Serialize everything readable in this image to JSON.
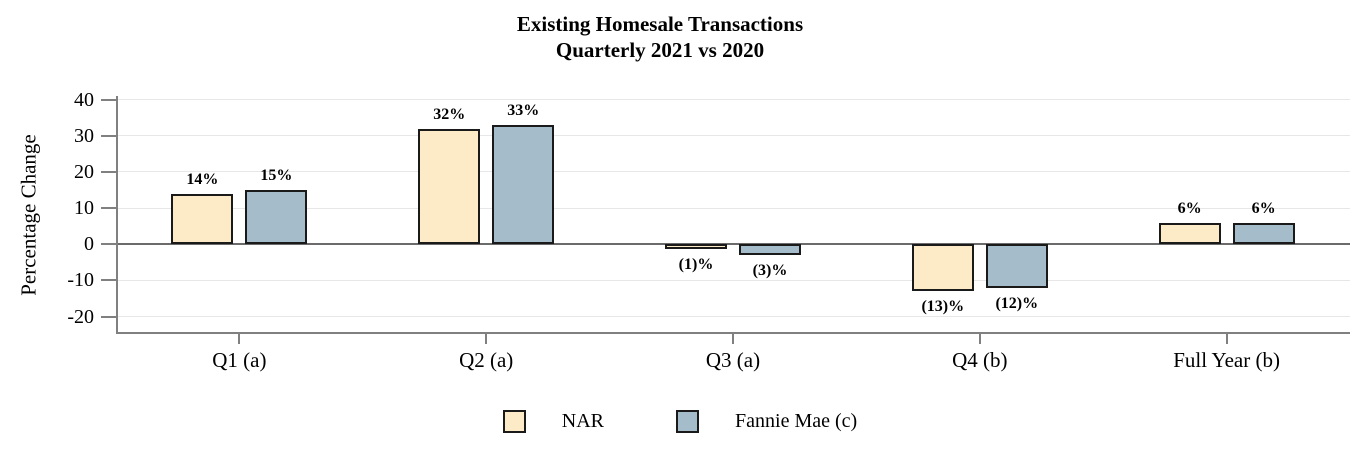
{
  "title": {
    "line1": "Existing Homesale Transactions",
    "line2": "Quarterly 2021 vs 2020"
  },
  "chart_data": {
    "type": "bar",
    "title": "Existing Homesale Transactions Quarterly 2021 vs 2020",
    "ylabel": "Percentage Change",
    "xlabel": "",
    "categories": [
      "Q1 (a)",
      "Q2 (a)",
      "Q3 (a)",
      "Q4 (b)",
      "Full Year (b)"
    ],
    "series": [
      {
        "name": "NAR",
        "color": "#fdeac6",
        "values": [
          14,
          32,
          -1,
          -13,
          6
        ],
        "labels": [
          "14%",
          "32%",
          "(1)%",
          "(13)%",
          "6%"
        ]
      },
      {
        "name": "Fannie Mae (c)",
        "color": "#a5bccb",
        "values": [
          15,
          33,
          -3,
          -12,
          6
        ],
        "labels": [
          "15%",
          "33%",
          "(3)%",
          "(12)%",
          "6%"
        ]
      }
    ],
    "yticks": [
      40,
      30,
      20,
      10,
      0,
      -10,
      -20
    ],
    "ylim": [
      -24.8,
      41
    ],
    "grid": true,
    "legend_position": "bottom"
  },
  "colors": {
    "bar_border": "#1a1a1a",
    "axis": "#808080",
    "gridline": "#e7e7e7",
    "zero_line": "#6b6b6b"
  }
}
